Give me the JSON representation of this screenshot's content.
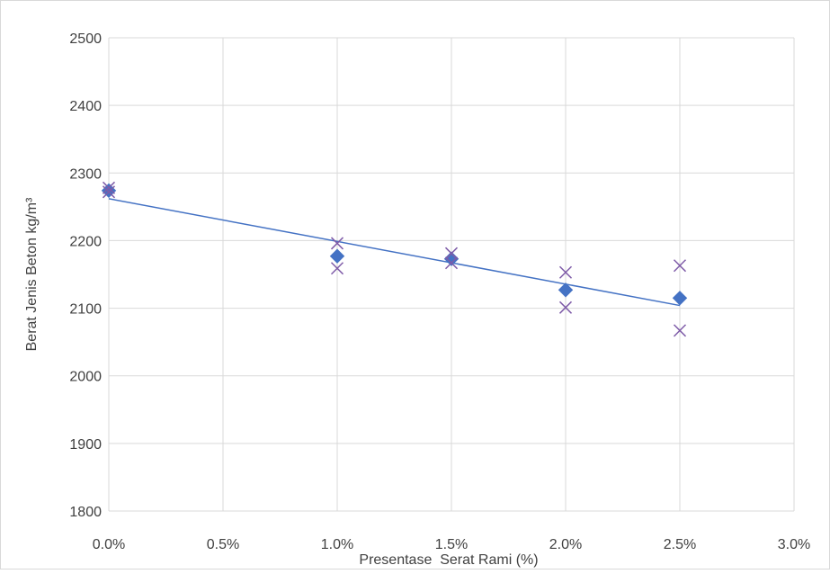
{
  "chart_data": {
    "type": "scatter",
    "xlabel": "Presentase  Serat Rami (%)",
    "ylabel": "Berat Jenis Beton kg/m³",
    "xlim": [
      0,
      3.0
    ],
    "ylim": [
      1800,
      2500
    ],
    "x_tick_labels": [
      "0.0%",
      "0.5%",
      "1.0%",
      "1.5%",
      "2.0%",
      "2.5%",
      "3.0%"
    ],
    "y_tick_labels": [
      "1800",
      "1900",
      "2000",
      "2100",
      "2200",
      "2300",
      "2400",
      "2500"
    ],
    "grid": true,
    "legend": "none",
    "series": [
      {
        "marker": "diamond",
        "color": "#4472C4",
        "points": [
          {
            "x": 0.0,
            "y": 2274
          },
          {
            "x": 1.0,
            "y": 2177
          },
          {
            "x": 1.5,
            "y": 2173
          },
          {
            "x": 2.0,
            "y": 2127
          },
          {
            "x": 2.5,
            "y": 2115
          }
        ]
      },
      {
        "marker": "x",
        "color": "#7E5BA8",
        "points": [
          {
            "x": 0.0,
            "y": 2278
          },
          {
            "x": 0.0,
            "y": 2272
          },
          {
            "x": 1.0,
            "y": 2196
          },
          {
            "x": 1.0,
            "y": 2159
          },
          {
            "x": 1.5,
            "y": 2181
          },
          {
            "x": 1.5,
            "y": 2167
          },
          {
            "x": 2.0,
            "y": 2153
          },
          {
            "x": 2.0,
            "y": 2101
          },
          {
            "x": 2.5,
            "y": 2163
          },
          {
            "x": 2.5,
            "y": 2067
          }
        ]
      }
    ],
    "trendline": {
      "type": "linear",
      "color": "#4472C4",
      "x_range": [
        0.0,
        2.5
      ],
      "y_values": [
        2262,
        2104
      ]
    }
  }
}
